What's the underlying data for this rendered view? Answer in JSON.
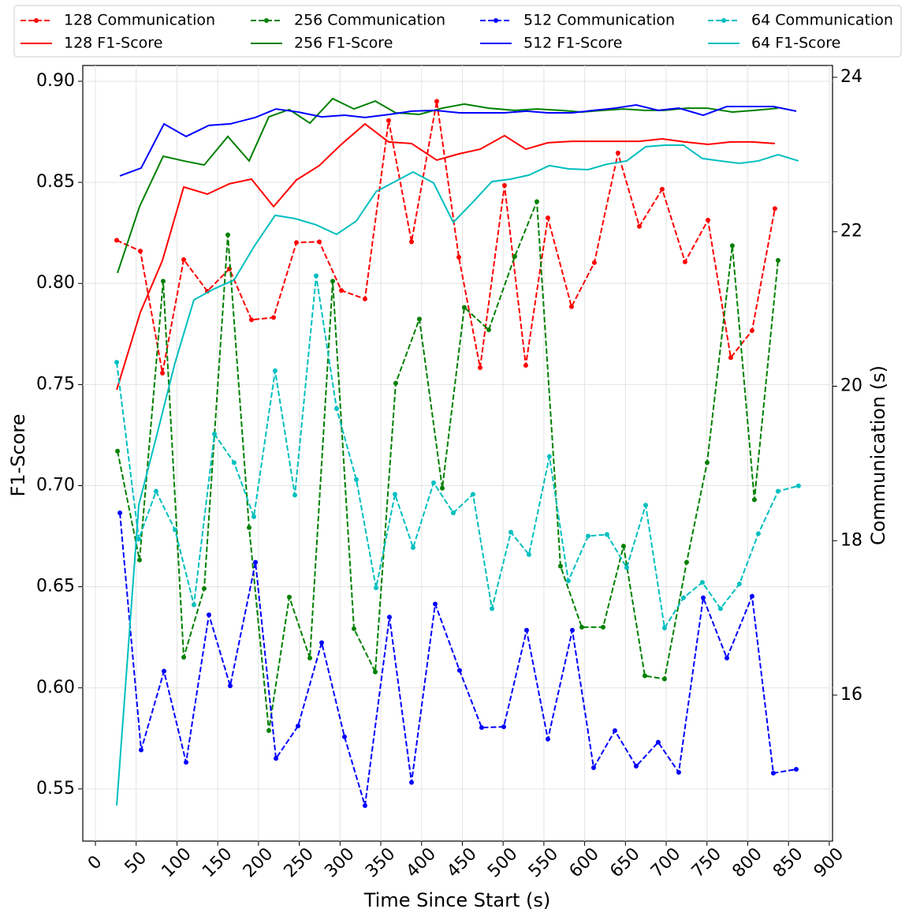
{
  "chart_data": {
    "type": "line",
    "x_label": "Time Since Start (s)",
    "y_label": "F1-Score",
    "y2_label": "Communication (s)",
    "xlim": [
      -15.5,
      904
    ],
    "xticks": [
      0,
      50,
      100,
      150,
      200,
      250,
      300,
      350,
      400,
      450,
      500,
      550,
      600,
      650,
      700,
      750,
      800,
      850,
      900
    ],
    "ylim": [
      0.5242,
      0.9078
    ],
    "yticks": [
      0.55,
      {
        "value": 0.6,
        "label": "0.60"
      },
      0.65,
      {
        "value": 0.7,
        "label": "0.70"
      },
      0.75,
      {
        "value": 0.8,
        "label": "0.80"
      },
      0.85,
      {
        "value": 0.9,
        "label": "0.90"
      }
    ],
    "y2lim": [
      14.11,
      24.153
    ],
    "y2ticks": [
      16,
      18,
      20,
      22,
      24
    ],
    "grid": true,
    "legend": "top",
    "series": [
      {
        "name": "128 Communication",
        "color": "#ff0000",
        "linestyle": "dashed",
        "marker": "o",
        "axis": "y2",
        "x": [
          26.1,
          55.1,
          82.2,
          108.3,
          137.3,
          164.3,
          191.4,
          218.5,
          246.5,
          274.6,
          301.6,
          330.6,
          359.6,
          387.7,
          418.6,
          445.7,
          471.8,
          501.7,
          527.8,
          554.9,
          583.9,
          611.9,
          640.9,
          667.1,
          695.1,
          723.1,
          751.2,
          779.2,
          805.3,
          833.3
        ],
        "values": [
          21.89,
          21.75,
          20.17,
          21.64,
          21.23,
          21.52,
          20.86,
          20.89,
          21.86,
          21.87,
          21.24,
          21.13,
          23.44,
          21.87,
          23.69,
          21.67,
          20.24,
          22.6,
          20.27,
          22.18,
          21.03,
          21.6,
          23.02,
          22.07,
          22.55,
          21.61,
          22.15,
          20.37,
          20.72,
          22.3
        ]
      },
      {
        "name": "128 F1-Score",
        "color": "#ff0000",
        "linestyle": "solid",
        "x": [
          26.1,
          55.1,
          82.2,
          108.3,
          137.3,
          164.3,
          191.4,
          218.5,
          246.5,
          274.6,
          301.6,
          330.6,
          359.6,
          387.7,
          418.6,
          445.7,
          471.8,
          501.7,
          527.8,
          554.9,
          583.9,
          611.9,
          640.9,
          667.1,
          695.1,
          723.1,
          751.2,
          779.2,
          805.3,
          833.3
        ],
        "values": [
          0.7474,
          0.7857,
          0.8114,
          0.8477,
          0.8442,
          0.8493,
          0.8516,
          0.838,
          0.8512,
          0.8583,
          0.8688,
          0.8789,
          0.87,
          0.8692,
          0.861,
          0.8641,
          0.8664,
          0.8731,
          0.8664,
          0.8696,
          0.8703,
          0.8703,
          0.8703,
          0.8703,
          0.8715,
          0.87,
          0.8688,
          0.87,
          0.87,
          0.8692
        ]
      },
      {
        "name": "256 Communication",
        "color": "#008000",
        "linestyle": "dashed",
        "marker": "o",
        "axis": "y2",
        "x": [
          27.1,
          54.1,
          83.1,
          108.3,
          133.4,
          162.4,
          188.5,
          212.7,
          237.8,
          263.0,
          291.0,
          317.1,
          343.2,
          368.3,
          397.3,
          425.4,
          452.4,
          482.4,
          514.3,
          541.4,
          570.4,
          596.5,
          622.6,
          647.7,
          673.8,
          698.0,
          725.1,
          750.2,
          781.1,
          808.2,
          837.2
        ],
        "values": [
          19.16,
          17.75,
          21.36,
          16.49,
          17.38,
          21.96,
          18.17,
          15.54,
          17.27,
          16.48,
          21.36,
          16.86,
          16.3,
          20.04,
          20.87,
          18.68,
          21.02,
          20.73,
          21.68,
          22.39,
          17.67,
          16.88,
          16.88,
          17.93,
          16.25,
          16.21,
          17.72,
          19.01,
          21.82,
          18.53,
          21.63
        ]
      },
      {
        "name": "256 F1-Score",
        "color": "#008000",
        "linestyle": "solid",
        "x": [
          27.1,
          54.1,
          83.1,
          108.3,
          133.4,
          162.4,
          188.5,
          212.7,
          237.8,
          263.0,
          291.0,
          317.1,
          343.2,
          368.3,
          397.3,
          425.4,
          452.4,
          482.4,
          514.3,
          541.4,
          570.4,
          596.5,
          622.6,
          647.7,
          673.8,
          698.0,
          725.1,
          750.2,
          781.1,
          808.2,
          837.2
        ],
        "values": [
          0.8052,
          0.838,
          0.8629,
          0.8606,
          0.8586,
          0.8727,
          0.8606,
          0.8824,
          0.886,
          0.8793,
          0.8914,
          0.8863,
          0.8902,
          0.8844,
          0.8836,
          0.8867,
          0.8887,
          0.8867,
          0.8856,
          0.8863,
          0.8856,
          0.8848,
          0.8856,
          0.8863,
          0.8856,
          0.8856,
          0.8867,
          0.8867,
          0.8848,
          0.8856,
          0.8867
        ]
      },
      {
        "name": "512 Communication",
        "color": "#0000ff",
        "linestyle": "dashed",
        "marker": "o",
        "axis": "y2",
        "x": [
          30.0,
          56.1,
          84.1,
          111.2,
          139.2,
          165.3,
          196.3,
          221.4,
          248.5,
          277.5,
          305.5,
          330.6,
          360.6,
          387.7,
          416.7,
          446.6,
          473.7,
          500.8,
          528.8,
          554.9,
          584.9,
          611.0,
          637.1,
          663.2,
          690.2,
          715.4,
          745.4,
          774.4,
          805.3,
          831.4,
          859.5
        ],
        "values": [
          18.36,
          15.29,
          16.31,
          15.13,
          17.04,
          16.12,
          17.72,
          15.18,
          15.6,
          16.68,
          15.46,
          14.57,
          17.01,
          14.87,
          17.18,
          16.32,
          15.58,
          15.59,
          16.84,
          15.43,
          16.84,
          15.06,
          15.54,
          15.08,
          15.39,
          15.0,
          17.26,
          16.48,
          17.28,
          14.99,
          15.04
        ]
      },
      {
        "name": "512 F1-Score",
        "color": "#0000ff",
        "linestyle": "solid",
        "x": [
          30.0,
          56.1,
          84.1,
          111.2,
          139.2,
          165.3,
          196.3,
          221.4,
          248.5,
          277.5,
          305.5,
          330.6,
          360.6,
          387.7,
          416.7,
          446.6,
          473.7,
          500.8,
          528.8,
          554.9,
          584.9,
          611.0,
          637.1,
          663.2,
          690.2,
          715.4,
          745.4,
          774.4,
          805.3,
          831.4,
          859.5
        ],
        "values": [
          0.8532,
          0.8571,
          0.8789,
          0.8727,
          0.8782,
          0.8789,
          0.8821,
          0.8863,
          0.8848,
          0.8824,
          0.8832,
          0.8821,
          0.8836,
          0.8852,
          0.8856,
          0.8844,
          0.8844,
          0.8844,
          0.8852,
          0.8844,
          0.8844,
          0.8856,
          0.8867,
          0.8883,
          0.8856,
          0.8867,
          0.8832,
          0.8875,
          0.8875,
          0.8875,
          0.8852
        ]
      },
      {
        "name": "64 Communication",
        "color": "#00bfbf",
        "linestyle": "dashed",
        "marker": "o",
        "axis": "y2",
        "x": [
          26.1,
          53.2,
          74.4,
          97.6,
          120.8,
          146.0,
          170.1,
          194.3,
          220.4,
          244.6,
          270.7,
          295.8,
          320.0,
          344.2,
          367.4,
          389.6,
          414.8,
          438.9,
          463.1,
          486.3,
          509.5,
          531.7,
          556.8,
          580.0,
          604.2,
          627.4,
          651.6,
          674.8,
          698.0,
          721.2,
          744.4,
          766.6,
          789.8,
          813.0,
          837.2,
          862.3
        ],
        "values": [
          20.31,
          18.02,
          18.64,
          18.14,
          17.17,
          19.38,
          19.01,
          18.31,
          20.2,
          18.59,
          21.43,
          19.71,
          18.79,
          17.39,
          18.6,
          17.91,
          18.75,
          18.36,
          18.6,
          17.12,
          18.11,
          17.82,
          19.09,
          17.48,
          18.06,
          18.08,
          17.65,
          18.46,
          16.87,
          17.26,
          17.46,
          17.12,
          17.44,
          18.09,
          18.64,
          18.71
        ]
      },
      {
        "name": "64 F1-Score",
        "color": "#00bfbf",
        "linestyle": "solid",
        "x": [
          26.1,
          53.2,
          74.4,
          97.6,
          120.8,
          146.0,
          170.1,
          194.3,
          220.4,
          244.6,
          270.7,
          295.8,
          320.0,
          344.2,
          367.4,
          389.6,
          414.8,
          438.9,
          463.1,
          486.3,
          509.5,
          531.7,
          556.8,
          580.0,
          604.2,
          627.4,
          651.6,
          674.8,
          698.0,
          721.2,
          744.4,
          766.6,
          789.8,
          813.0,
          837.2,
          862.3
        ],
        "values": [
          0.5418,
          0.6905,
          0.7236,
          0.7607,
          0.7919,
          0.7974,
          0.8017,
          0.8181,
          0.8337,
          0.8321,
          0.829,
          0.8243,
          0.8309,
          0.8454,
          0.8504,
          0.8551,
          0.8497,
          0.8302,
          0.8403,
          0.8504,
          0.8516,
          0.8536,
          0.8583,
          0.8567,
          0.8563,
          0.859,
          0.8606,
          0.8676,
          0.8684,
          0.8684,
          0.8618,
          0.8606,
          0.8594,
          0.8606,
          0.8637,
          0.8606
        ]
      }
    ]
  }
}
